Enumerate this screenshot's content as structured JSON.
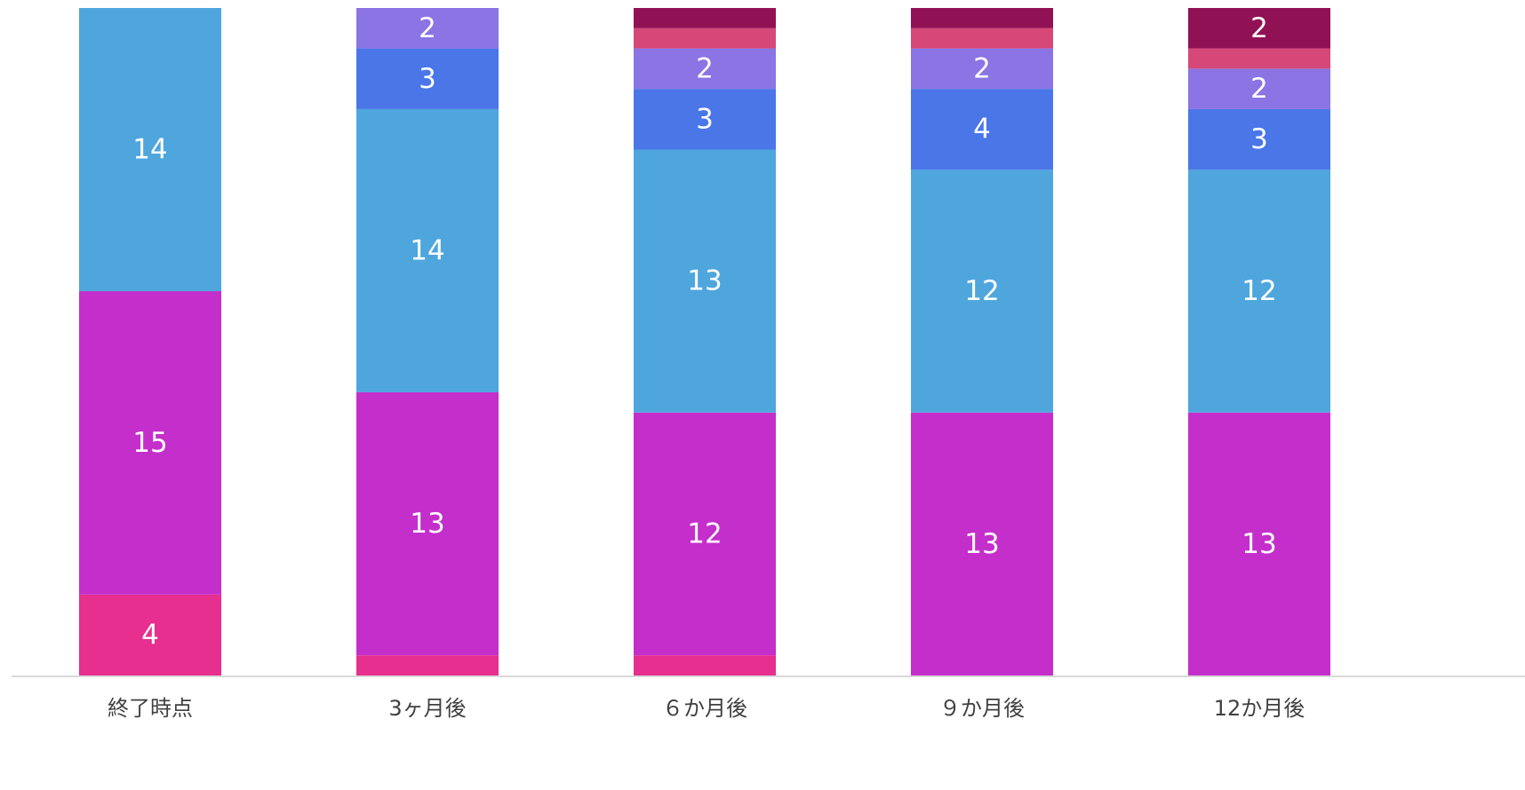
{
  "chart_data": {
    "type": "bar",
    "stacked": true,
    "categories": [
      "終了時点",
      "3ヶ月後",
      "６か月後",
      "９か月後",
      "12か月後"
    ],
    "series": [
      {
        "color": "#E62F8E",
        "values": [
          4,
          1,
          1,
          0,
          0
        ],
        "labels": [
          "4",
          "",
          "",
          "",
          ""
        ]
      },
      {
        "color": "#C42FCB",
        "values": [
          15,
          13,
          12,
          13,
          13
        ],
        "labels": [
          "15",
          "13",
          "12",
          "13",
          "13"
        ]
      },
      {
        "color": "#4FA6DD",
        "values": [
          14,
          14,
          13,
          12,
          12
        ],
        "labels": [
          "14",
          "14",
          "13",
          "12",
          "12"
        ]
      },
      {
        "color": "#4A76E8",
        "values": [
          0,
          3,
          3,
          4,
          3
        ],
        "labels": [
          "",
          "3",
          "3",
          "4",
          "3"
        ]
      },
      {
        "color": "#8B74E3",
        "values": [
          0,
          2,
          2,
          2,
          2
        ],
        "labels": [
          "",
          "2",
          "2",
          "2",
          "2"
        ]
      },
      {
        "color": "#D64878",
        "values": [
          0,
          0,
          1,
          1,
          1
        ],
        "labels": [
          "",
          "",
          "",
          "",
          ""
        ]
      },
      {
        "color": "#911254",
        "values": [
          0,
          0,
          1,
          1,
          2
        ],
        "labels": [
          "",
          "",
          "",
          "",
          "2"
        ]
      }
    ],
    "ylim": [
      0,
      33
    ],
    "legend": "none",
    "grid": false
  }
}
